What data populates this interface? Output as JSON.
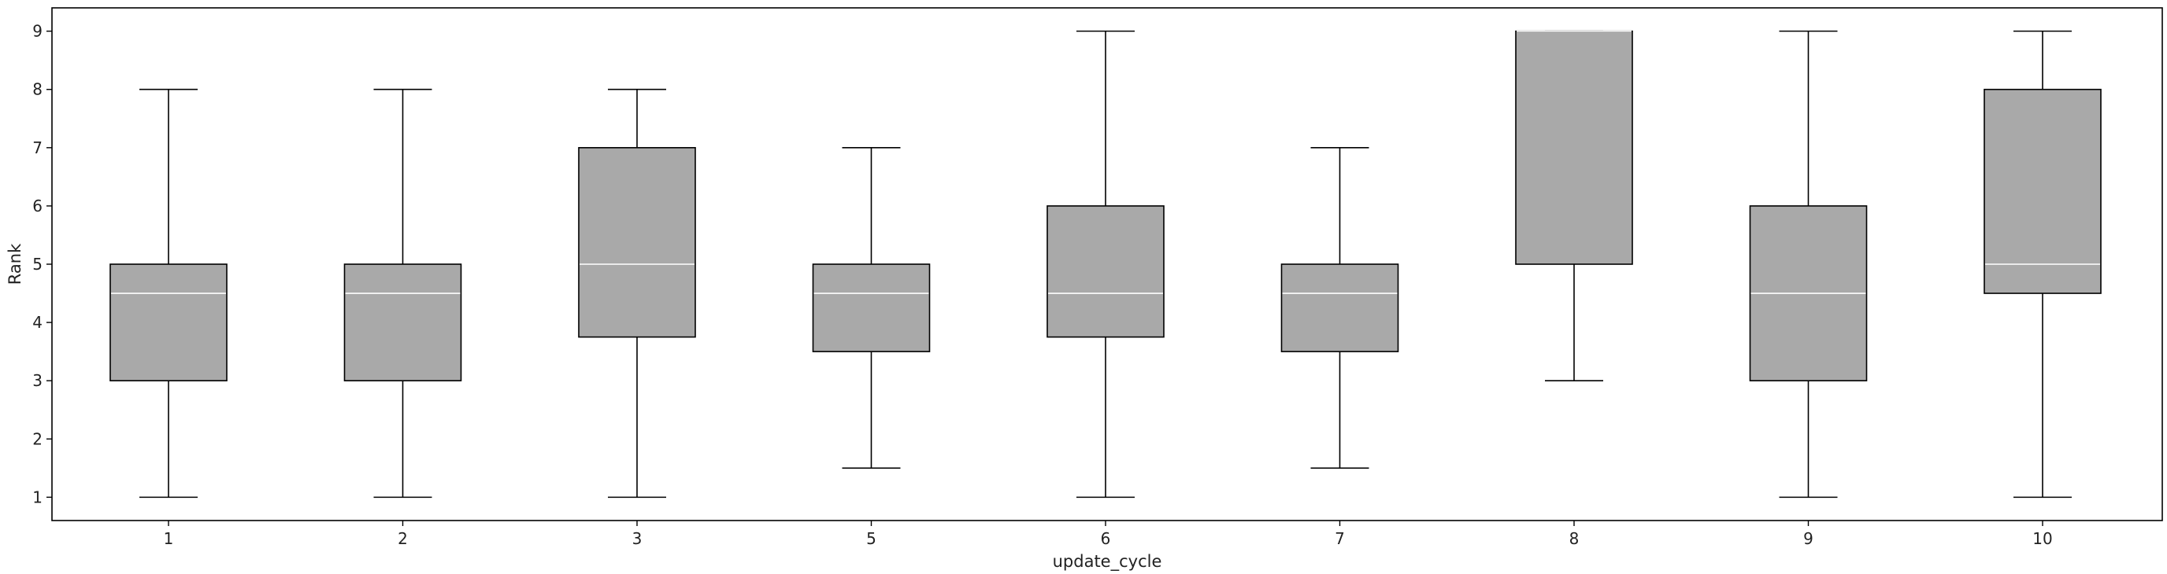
{
  "chart_data": {
    "type": "box",
    "xlabel": "update_cycle",
    "ylabel": "Rank",
    "ylim": [
      0.6,
      9.4
    ],
    "yticks": [
      1,
      2,
      3,
      4,
      5,
      6,
      7,
      8,
      9
    ],
    "grid": false,
    "legend": "none",
    "colors": {
      "box_fill": "#a9a9a9",
      "median": "#ffffff",
      "line": "#000000"
    },
    "categories": [
      "1",
      "2",
      "3",
      "5",
      "6",
      "7",
      "8",
      "9",
      "10"
    ],
    "boxes": [
      {
        "category": "1",
        "whisker_low": 1,
        "q1": 3,
        "median": 4.5,
        "q3": 5,
        "whisker_high": 8
      },
      {
        "category": "2",
        "whisker_low": 1,
        "q1": 3,
        "median": 4.5,
        "q3": 5,
        "whisker_high": 8
      },
      {
        "category": "3",
        "whisker_low": 1,
        "q1": 3.75,
        "median": 5,
        "q3": 7,
        "whisker_high": 8
      },
      {
        "category": "5",
        "whisker_low": 1.5,
        "q1": 3.5,
        "median": 4.5,
        "q3": 5,
        "whisker_high": 7
      },
      {
        "category": "6",
        "whisker_low": 1,
        "q1": 3.75,
        "median": 4.5,
        "q3": 6,
        "whisker_high": 9
      },
      {
        "category": "7",
        "whisker_low": 1.5,
        "q1": 3.5,
        "median": 4.5,
        "q3": 5,
        "whisker_high": 7
      },
      {
        "category": "8",
        "whisker_low": 3,
        "q1": 5,
        "median": 9,
        "q3": 9,
        "whisker_high": 9
      },
      {
        "category": "9",
        "whisker_low": 1,
        "q1": 3,
        "median": 4.5,
        "q3": 6,
        "whisker_high": 9
      },
      {
        "category": "10",
        "whisker_low": 1,
        "q1": 4.5,
        "median": 5,
        "q3": 8,
        "whisker_high": 9
      }
    ]
  }
}
